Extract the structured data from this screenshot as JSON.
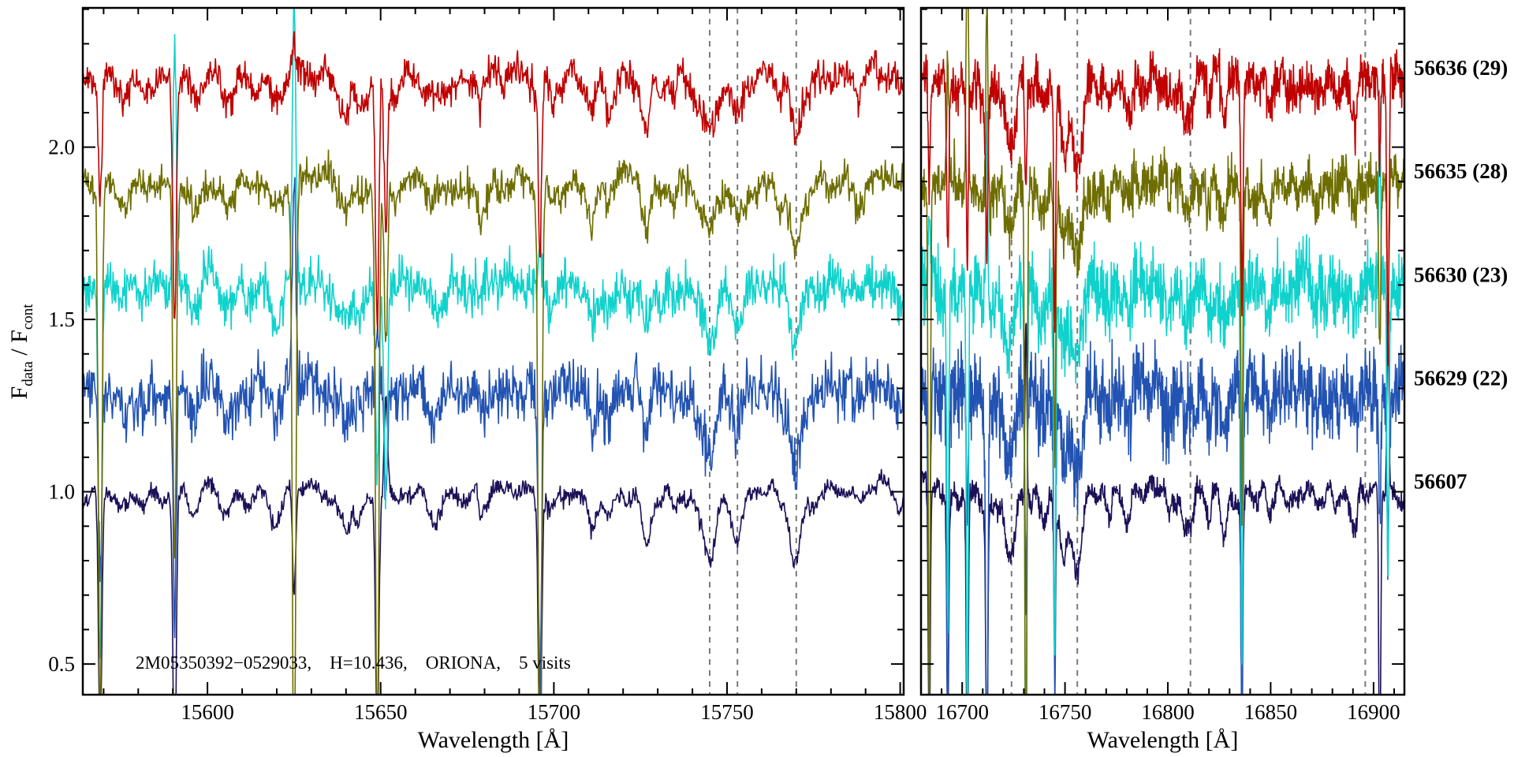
{
  "figure": {
    "background": "#ffffff",
    "axis_color": "#000000",
    "dashed_line_color": "#7a7a7a"
  },
  "chart_data": {
    "type": "line",
    "title": "",
    "xlabel": "Wavelength [Å]",
    "ylabel": "Fdata / Fcont",
    "ylabel_parts": {
      "f1": "F",
      "sub1": "data",
      "f2": " / F",
      "sub2": "cont"
    },
    "annotation": "2M05350392−0529033,    H=10.436,    ORIONA,    5 visits",
    "ylim": [
      0.411,
      2.404
    ],
    "yticks": [
      0.5,
      1.0,
      1.5,
      2.0
    ],
    "ytick_labels": [
      "0.5",
      "1.0",
      "1.5",
      "2.0"
    ],
    "y_minor_step": 0.1,
    "x_minor_step": 10,
    "legend_position": "right-outside",
    "grid": false,
    "panels": [
      {
        "name": "left-panel",
        "xlim": [
          15564,
          15801
        ],
        "xticks": [
          15600,
          15650,
          15700,
          15750,
          15800
        ],
        "xtick_labels": [
          "15600",
          "15650",
          "15700",
          "15750",
          "15800"
        ],
        "dashed_lines": [
          15745,
          15753,
          15770
        ],
        "sky_lines": [
          15562.5,
          15569,
          15590.5,
          15625,
          15649,
          15651.5,
          15696
        ],
        "stellar_lines": [
          {
            "c": 15575,
            "d": 0.06,
            "w": 1.2
          },
          {
            "c": 15605,
            "d": 0.05,
            "w": 1.4
          },
          {
            "c": 15621,
            "d": 0.06,
            "w": 1.2
          },
          {
            "c": 15639,
            "d": 0.07,
            "w": 1.8
          },
          {
            "c": 15665,
            "d": 0.06,
            "w": 1.4
          },
          {
            "c": 15680,
            "d": 0.05,
            "w": 1.2
          },
          {
            "c": 15711,
            "d": 0.07,
            "w": 1.6
          },
          {
            "c": 15727,
            "d": 0.05,
            "w": 1.4
          },
          {
            "c": 15745,
            "d": 0.13,
            "w": 1.7
          },
          {
            "c": 15753,
            "d": 0.11,
            "w": 1.5
          },
          {
            "c": 15770,
            "d": 0.15,
            "w": 1.9
          }
        ]
      },
      {
        "name": "right-panel",
        "xlim": [
          16680,
          16915
        ],
        "xticks": [
          16700,
          16750,
          16800,
          16850,
          16900
        ],
        "xtick_labels": [
          "16700",
          "16750",
          "16800",
          "16850",
          "16900"
        ],
        "dashed_lines": [
          16724,
          16756,
          16811,
          16896
        ],
        "sky_lines": [
          16684,
          16693,
          16702.5,
          16712,
          16731,
          16745,
          16836,
          16903,
          16907
        ],
        "stellar_lines": [
          {
            "c": 16711,
            "d": 0.07,
            "w": 1.5
          },
          {
            "c": 16723,
            "d": 0.17,
            "w": 2.0
          },
          {
            "c": 16740,
            "d": 0.08,
            "w": 1.6
          },
          {
            "c": 16750,
            "d": 0.1,
            "w": 1.6
          },
          {
            "c": 16756,
            "d": 0.22,
            "w": 2.4
          },
          {
            "c": 16780,
            "d": 0.05,
            "w": 1.4
          },
          {
            "c": 16800,
            "d": 0.05,
            "w": 1.4
          },
          {
            "c": 16811,
            "d": 0.07,
            "w": 1.5
          },
          {
            "c": 16850,
            "d": 0.05,
            "w": 1.5
          },
          {
            "c": 16872,
            "d": 0.05,
            "w": 1.4
          },
          {
            "c": 16890,
            "d": 0.06,
            "w": 1.5
          }
        ]
      }
    ],
    "sky_line_width": 0.48,
    "series": [
      {
        "label": "56607",
        "id": "56607",
        "color": "#1b1157",
        "offset": 1.0,
        "noise": [
          0.013,
          0.016
        ],
        "seed": 11,
        "up_prob": 0.05,
        "sky_scale": 0.45
      },
      {
        "label": "56629 (22)",
        "id": "56629",
        "color": "#2253b2",
        "offset": 1.3,
        "noise": [
          0.042,
          0.06
        ],
        "seed": 22,
        "up_prob": 0.3,
        "sky_scale": 0.55
      },
      {
        "label": "56630 (23)",
        "id": "56630",
        "color": "#10d2cc",
        "offset": 1.6,
        "noise": [
          0.035,
          0.05
        ],
        "seed": 33,
        "up_prob": 0.5,
        "sky_scale": 0.75
      },
      {
        "label": "56635 (28)",
        "id": "56635",
        "color": "#6e6e00",
        "offset": 1.9,
        "noise": [
          0.024,
          0.036
        ],
        "seed": 44,
        "up_prob": 0.15,
        "sky_scale": 0.9
      },
      {
        "label": "56636 (29)",
        "id": "56636",
        "color": "#c00000",
        "offset": 2.2,
        "noise": [
          0.024,
          0.034
        ],
        "seed": 55,
        "up_prob": 0.12,
        "sky_scale": 0.4
      }
    ]
  }
}
